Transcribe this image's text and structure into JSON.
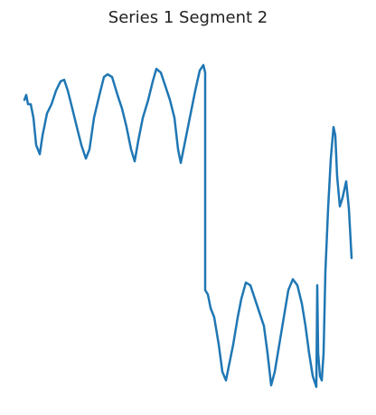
{
  "chart_data": {
    "type": "line",
    "title": "Series 1 Segment 2",
    "color": "#1f77b4",
    "axes": false,
    "xlim": [
      0,
      362
    ],
    "ylim": [
      -3.2,
      3.2
    ],
    "x": [
      0,
      2,
      4,
      7,
      10,
      13,
      17,
      20,
      25,
      30,
      35,
      40,
      44,
      48,
      53,
      58,
      63,
      68,
      72,
      77,
      83,
      88,
      92,
      97,
      103,
      108,
      113,
      118,
      122,
      126,
      131,
      137,
      142,
      146,
      151,
      156,
      161,
      166,
      170,
      173,
      177,
      183,
      189,
      194,
      198,
      200,
      200,
      203,
      206,
      210,
      215,
      219,
      223,
      227,
      231,
      236,
      240,
      245,
      250,
      255,
      260,
      265,
      269,
      273,
      277,
      282,
      287,
      292,
      297,
      302,
      307,
      311,
      315,
      319,
      323,
      324,
      325,
      327,
      329,
      331,
      333,
      336,
      339,
      342,
      344,
      346,
      349,
      352,
      356,
      359,
      362
    ],
    "values": [
      2.33,
      2.42,
      2.25,
      2.25,
      2.0,
      1.5,
      1.33,
      1.67,
      2.08,
      2.25,
      2.5,
      2.67,
      2.7,
      2.5,
      2.17,
      1.83,
      1.5,
      1.25,
      1.42,
      2.0,
      2.42,
      2.75,
      2.8,
      2.75,
      2.42,
      2.17,
      1.83,
      1.42,
      1.2,
      1.58,
      2.0,
      2.33,
      2.67,
      2.9,
      2.83,
      2.58,
      2.33,
      2.0,
      1.42,
      1.17,
      1.5,
      2.0,
      2.5,
      2.87,
      2.97,
      2.83,
      -1.17,
      -1.25,
      -1.5,
      -1.67,
      -2.17,
      -2.67,
      -2.83,
      -2.5,
      -2.17,
      -1.67,
      -1.33,
      -1.03,
      -1.08,
      -1.33,
      -1.58,
      -1.83,
      -2.33,
      -2.92,
      -2.67,
      -2.17,
      -1.67,
      -1.17,
      -0.97,
      -1.08,
      -1.42,
      -1.83,
      -2.33,
      -2.75,
      -2.95,
      -1.08,
      -2.33,
      -2.75,
      -2.83,
      -2.33,
      -0.83,
      0.33,
      1.25,
      1.83,
      1.67,
      0.92,
      0.37,
      0.53,
      0.83,
      0.33,
      -0.58
    ]
  }
}
